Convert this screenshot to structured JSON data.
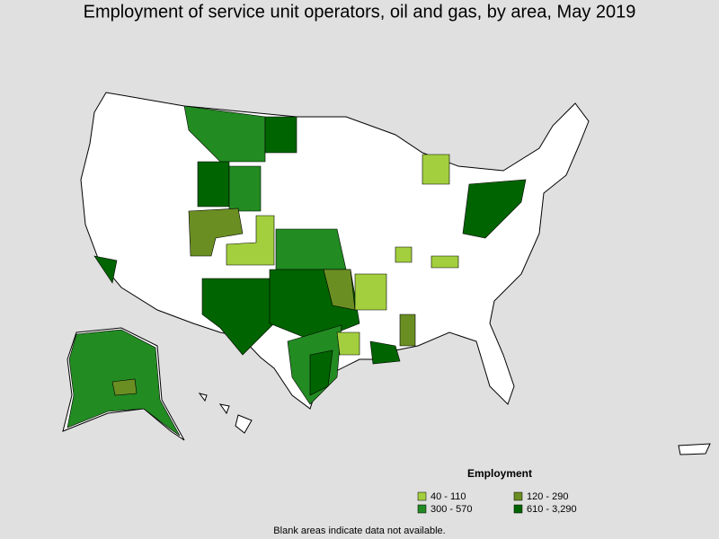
{
  "title": "Employment of service unit operators, oil and gas, by area, May 2019",
  "legend": {
    "title": "Employment",
    "items": [
      {
        "label": "40 - 110",
        "color": "#a3cf3e"
      },
      {
        "label": "120 - 290",
        "color": "#6b8e23"
      },
      {
        "label": "300 - 570",
        "color": "#228b22"
      },
      {
        "label": "610 - 3,290",
        "color": "#006400"
      }
    ]
  },
  "footnote": "Blank areas indicate data not available."
}
